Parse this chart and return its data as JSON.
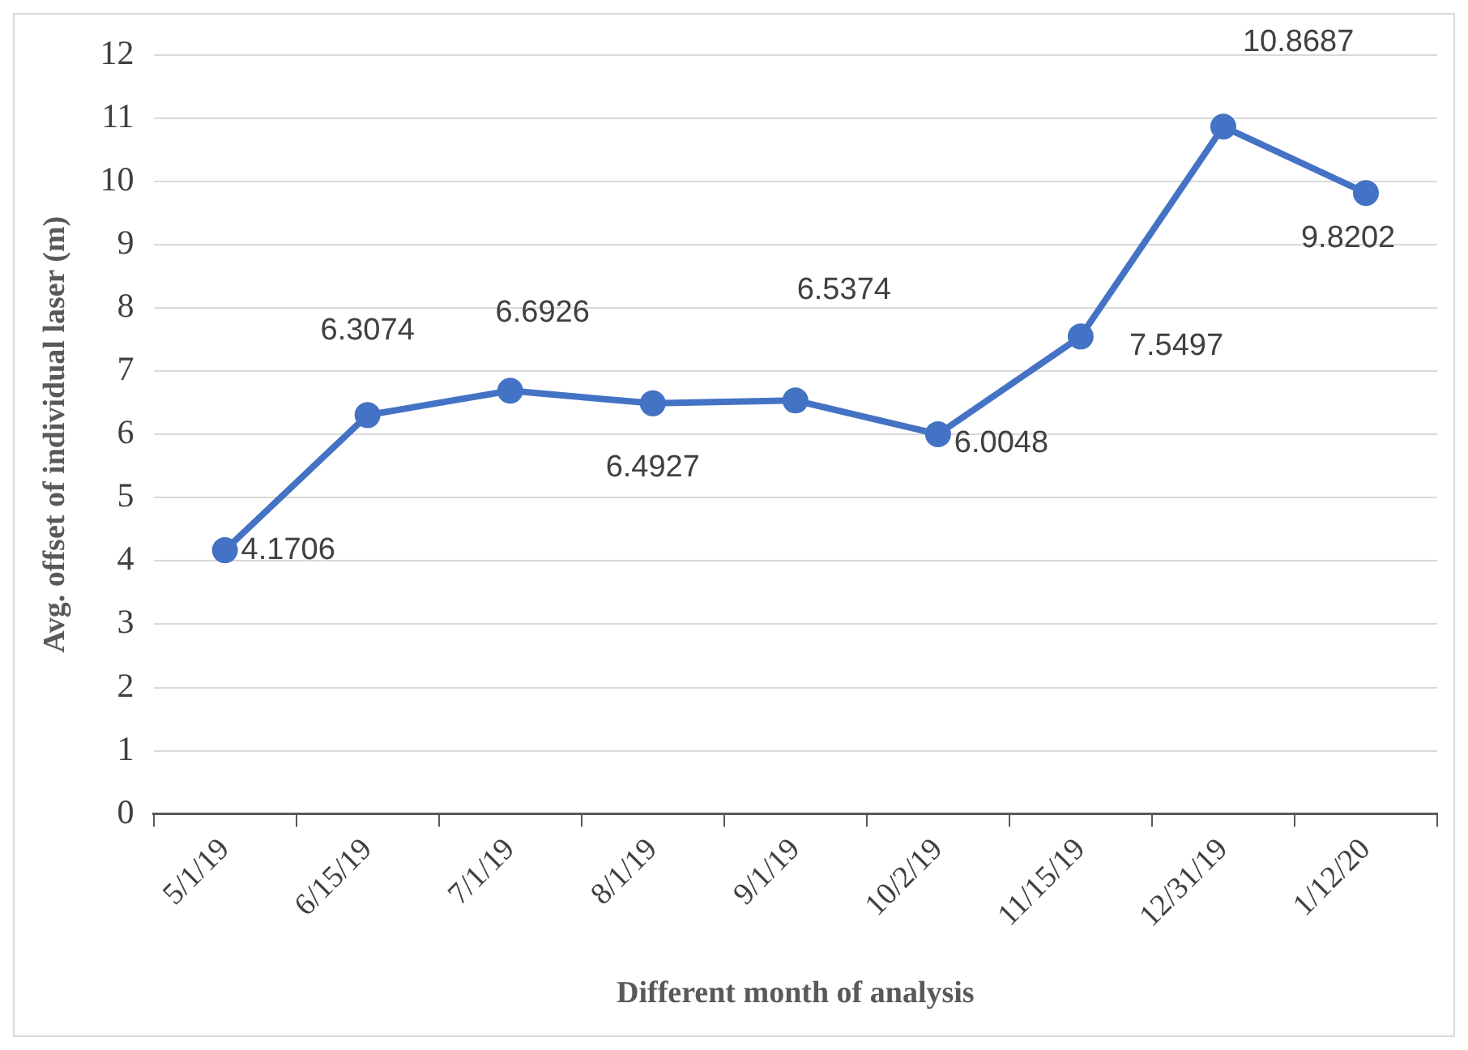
{
  "chart_data": {
    "type": "line",
    "xlabel": "Different month of analysis",
    "ylabel": "Avg. offset of individual laser (m)",
    "categories": [
      "5/1/19",
      "6/15/19",
      "7/1/19",
      "8/1/19",
      "9/1/19",
      "10/2/19",
      "11/15/19",
      "12/31/19",
      "1/12/20"
    ],
    "series": [
      {
        "color": "#4472c4",
        "values": [
          4.1706,
          6.3074,
          6.6926,
          6.4927,
          6.5374,
          6.0048,
          7.5497,
          10.8687,
          9.8202
        ]
      }
    ],
    "ylim": [
      0,
      12
    ],
    "yticks": [
      0,
      1,
      2,
      3,
      4,
      5,
      6,
      7,
      8,
      9,
      10,
      11,
      12
    ],
    "grid": "y",
    "legend": false,
    "marker": "circle",
    "line_style": "solid",
    "data_labels": true
  }
}
